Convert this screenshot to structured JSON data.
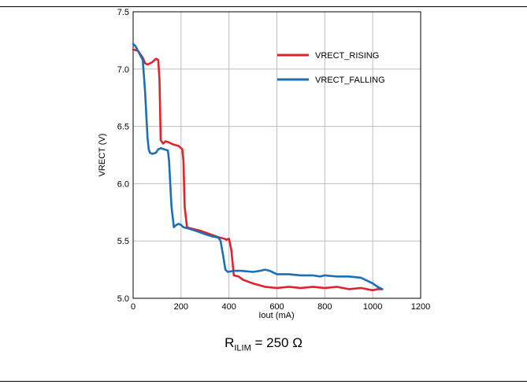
{
  "caption": {
    "main": "R",
    "sub": "ILIM",
    "rest": " = 250 Ω"
  },
  "chart_data": {
    "type": "line",
    "xlabel": "Iout (mA)",
    "ylabel": "VRECT (V)",
    "xlim": [
      0,
      1200
    ],
    "ylim": [
      5.0,
      7.5
    ],
    "xticks": [
      0,
      200,
      400,
      600,
      800,
      1000,
      1200
    ],
    "yticks": [
      5.0,
      5.5,
      6.0,
      6.5,
      7.0,
      7.5
    ],
    "xtick_labels": [
      "0",
      "200",
      "400",
      "600",
      "800",
      "1000",
      "1200"
    ],
    "ytick_labels": [
      "5.0",
      "5.5",
      "6.0",
      "6.5",
      "7.0",
      "7.5"
    ],
    "grid": true,
    "legend_position": "top-right",
    "series": [
      {
        "name": "VRECT_RISING",
        "color": "#e0242b",
        "x": [
          0,
          20,
          40,
          50,
          60,
          80,
          95,
          105,
          110,
          115,
          125,
          135,
          150,
          170,
          190,
          195,
          205,
          210,
          215,
          225,
          240,
          280,
          320,
          360,
          380,
          390,
          400,
          410,
          420,
          440,
          460,
          500,
          550,
          600,
          650,
          700,
          750,
          800,
          850,
          900,
          950,
          1000,
          1020,
          1040
        ],
        "y": [
          7.17,
          7.16,
          7.1,
          7.05,
          7.04,
          7.06,
          7.09,
          7.08,
          6.9,
          6.38,
          6.35,
          6.37,
          6.36,
          6.34,
          6.33,
          6.32,
          6.3,
          6.2,
          5.8,
          5.62,
          5.61,
          5.59,
          5.56,
          5.53,
          5.52,
          5.51,
          5.52,
          5.42,
          5.2,
          5.19,
          5.16,
          5.13,
          5.1,
          5.09,
          5.1,
          5.09,
          5.1,
          5.09,
          5.1,
          5.08,
          5.09,
          5.07,
          5.08,
          5.08
        ]
      },
      {
        "name": "VRECT_FALLING",
        "color": "#1a6fb5",
        "x": [
          0,
          10,
          20,
          30,
          40,
          50,
          55,
          60,
          65,
          70,
          80,
          95,
          105,
          115,
          130,
          145,
          150,
          155,
          160,
          170,
          180,
          190,
          200,
          210,
          230,
          260,
          300,
          330,
          355,
          365,
          375,
          385,
          395,
          420,
          450,
          500,
          530,
          550,
          570,
          600,
          650,
          700,
          750,
          780,
          800,
          850,
          900,
          950,
          980,
          1000,
          1020,
          1040
        ],
        "y": [
          7.22,
          7.2,
          7.16,
          7.12,
          7.08,
          6.8,
          6.6,
          6.4,
          6.3,
          6.27,
          6.26,
          6.27,
          6.3,
          6.31,
          6.3,
          6.29,
          6.2,
          6.0,
          5.8,
          5.62,
          5.64,
          5.65,
          5.64,
          5.62,
          5.61,
          5.59,
          5.56,
          5.54,
          5.53,
          5.5,
          5.38,
          5.25,
          5.23,
          5.24,
          5.24,
          5.23,
          5.24,
          5.25,
          5.24,
          5.21,
          5.21,
          5.2,
          5.2,
          5.19,
          5.2,
          5.19,
          5.19,
          5.18,
          5.15,
          5.13,
          5.1,
          5.08
        ]
      }
    ]
  }
}
